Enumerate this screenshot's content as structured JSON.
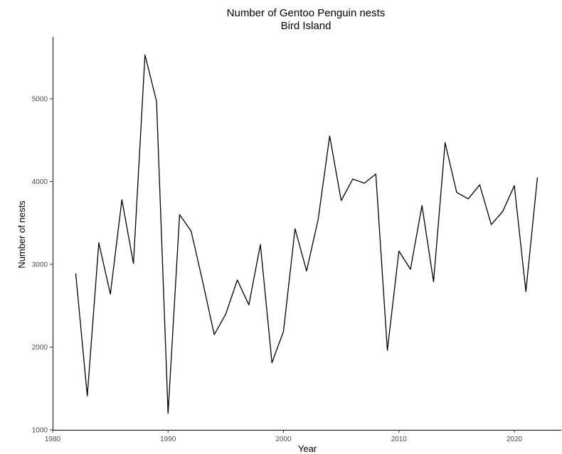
{
  "chart_data": {
    "type": "line",
    "title": "Number of Gentoo Penguin nests",
    "subtitle": "Bird Island",
    "xlabel": "Year",
    "ylabel": "Number of nests",
    "xlim": [
      1980,
      2024
    ],
    "ylim": [
      1000,
      5750
    ],
    "xticks": [
      1980,
      1990,
      2000,
      2010,
      2020
    ],
    "yticks": [
      1000,
      2000,
      3000,
      4000,
      5000
    ],
    "grid": false,
    "line_color": "#000000",
    "series": [
      {
        "x": [
          1982,
          1983,
          1984,
          1985,
          1986,
          1987,
          1988,
          1989,
          1990,
          1991,
          1992,
          1993,
          1994,
          1995,
          1996,
          1997,
          1998,
          1999,
          2000,
          2001,
          2002,
          2003,
          2004,
          2005,
          2006,
          2007,
          2008,
          2009,
          2010,
          2011,
          2012,
          2013,
          2014,
          2015,
          2016,
          2017,
          2018,
          2019,
          2020,
          2021,
          2022
        ],
        "y": [
          2890,
          1410,
          3260,
          2640,
          3780,
          3010,
          5530,
          4970,
          1200,
          3600,
          3400,
          2790,
          2150,
          2400,
          2810,
          2510,
          3240,
          1810,
          2190,
          3430,
          2920,
          3540,
          4550,
          3770,
          4030,
          3980,
          4090,
          1960,
          3160,
          2940,
          3710,
          2790,
          4470,
          3870,
          3790,
          3960,
          3480,
          3640,
          3950,
          2670,
          4050
        ]
      }
    ]
  }
}
